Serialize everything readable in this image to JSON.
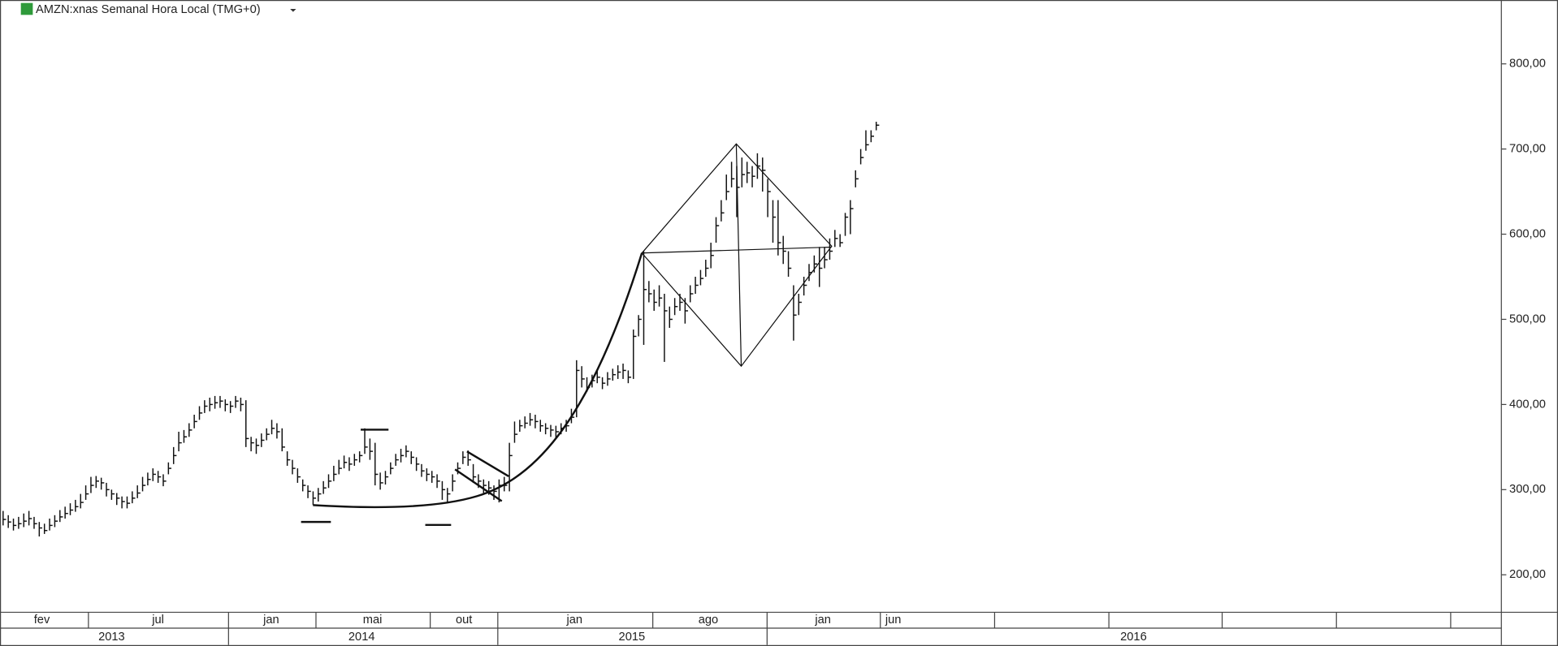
{
  "chart_data": {
    "type": "ohlc",
    "title": "AMZN:xnas Semanal Hora Local (TMG+0)",
    "color": "#111111",
    "close": [
      265,
      262,
      258,
      260,
      263,
      266,
      260,
      255,
      252,
      258,
      263,
      268,
      272,
      276,
      280,
      285,
      295,
      305,
      310,
      308,
      300,
      295,
      290,
      286,
      284,
      290,
      296,
      305,
      312,
      318,
      315,
      310,
      325,
      340,
      355,
      362,
      370,
      380,
      390,
      398,
      400,
      402,
      404,
      400,
      398,
      404,
      400,
      360,
      355,
      352,
      358,
      365,
      372,
      368,
      350,
      335,
      325,
      315,
      305,
      298,
      290,
      295,
      302,
      310,
      318,
      325,
      332,
      330,
      335,
      340,
      350,
      345,
      318,
      308,
      315,
      325,
      335,
      340,
      345,
      338,
      330,
      322,
      318,
      315,
      310,
      300,
      295,
      310,
      325,
      338,
      335,
      315,
      310,
      305,
      302,
      298,
      305,
      305,
      340,
      365,
      375,
      378,
      382,
      380,
      375,
      372,
      370,
      368,
      372,
      375,
      385,
      440,
      430,
      420,
      428,
      432,
      425,
      430,
      435,
      438,
      440,
      432,
      480,
      500,
      535,
      530,
      520,
      525,
      510,
      500,
      515,
      520,
      510,
      530,
      540,
      548,
      560,
      575,
      610,
      625,
      650,
      665,
      655,
      670,
      672,
      668,
      680,
      675,
      650,
      620,
      590,
      580,
      560,
      505,
      520,
      540,
      555,
      565,
      560,
      570,
      580,
      595,
      590,
      620,
      630,
      665,
      690,
      705,
      715,
      728
    ],
    "high": [
      275,
      270,
      266,
      268,
      272,
      275,
      268,
      262,
      260,
      266,
      270,
      276,
      280,
      284,
      288,
      295,
      305,
      315,
      316,
      314,
      308,
      300,
      296,
      292,
      292,
      298,
      305,
      315,
      320,
      325,
      322,
      318,
      332,
      350,
      368,
      370,
      378,
      388,
      398,
      405,
      408,
      410,
      410,
      406,
      404,
      410,
      408,
      405,
      362,
      360,
      366,
      372,
      382,
      378,
      372,
      345,
      335,
      325,
      312,
      305,
      298,
      302,
      310,
      318,
      328,
      335,
      340,
      338,
      342,
      345,
      372,
      360,
      355,
      320,
      322,
      332,
      342,
      348,
      352,
      345,
      338,
      330,
      325,
      322,
      318,
      310,
      302,
      318,
      332,
      345,
      346,
      330,
      318,
      312,
      310,
      305,
      312,
      315,
      355,
      380,
      382,
      386,
      390,
      388,
      382,
      378,
      376,
      375,
      378,
      382,
      395,
      452,
      445,
      432,
      435,
      440,
      432,
      438,
      442,
      446,
      448,
      440,
      488,
      505,
      580,
      545,
      535,
      540,
      530,
      515,
      525,
      530,
      525,
      540,
      550,
      558,
      570,
      590,
      620,
      640,
      670,
      685,
      680,
      690,
      685,
      680,
      695,
      690,
      665,
      640,
      640,
      598,
      580,
      540,
      530,
      550,
      565,
      575,
      585,
      585,
      595,
      605,
      600,
      625,
      640,
      675,
      700,
      722,
      722,
      732
    ],
    "low": [
      258,
      255,
      252,
      254,
      256,
      258,
      254,
      245,
      248,
      252,
      256,
      262,
      266,
      270,
      274,
      278,
      288,
      296,
      302,
      300,
      292,
      288,
      282,
      278,
      278,
      284,
      290,
      298,
      305,
      310,
      308,
      304,
      318,
      330,
      345,
      355,
      362,
      372,
      382,
      390,
      392,
      395,
      396,
      392,
      390,
      396,
      392,
      350,
      345,
      342,
      350,
      358,
      365,
      360,
      345,
      328,
      318,
      308,
      298,
      290,
      282,
      286,
      295,
      302,
      310,
      318,
      325,
      322,
      328,
      332,
      342,
      335,
      305,
      300,
      306,
      318,
      328,
      332,
      338,
      330,
      322,
      315,
      310,
      308,
      302,
      288,
      285,
      298,
      318,
      330,
      328,
      308,
      302,
      296,
      294,
      288,
      285,
      298,
      298,
      355,
      368,
      372,
      375,
      372,
      368,
      365,
      362,
      360,
      365,
      368,
      378,
      385,
      420,
      415,
      420,
      425,
      418,
      422,
      428,
      430,
      430,
      425,
      430,
      480,
      470,
      520,
      510,
      515,
      450,
      490,
      505,
      510,
      495,
      520,
      530,
      540,
      550,
      560,
      590,
      615,
      640,
      655,
      620,
      655,
      660,
      655,
      665,
      650,
      620,
      590,
      575,
      565,
      550,
      475,
      505,
      528,
      545,
      555,
      538,
      560,
      570,
      585,
      585,
      598,
      600,
      655,
      682,
      698,
      708,
      722
    ],
    "ylim": [
      156,
      875
    ],
    "yticks": [
      {
        "value": 200,
        "label": "200,00"
      },
      {
        "value": 300,
        "label": "300,00"
      },
      {
        "value": 400,
        "label": "400,00"
      },
      {
        "value": 500,
        "label": "500,00"
      },
      {
        "value": 600,
        "label": "600,00"
      },
      {
        "value": 700,
        "label": "700,00"
      },
      {
        "value": 800,
        "label": "800,00"
      }
    ],
    "xlim": [
      -0.6,
      290
    ],
    "xticks": [
      {
        "value": 7.5,
        "label": "fev"
      },
      {
        "value": 30,
        "label": "jul"
      },
      {
        "value": 51.9,
        "label": "jan"
      },
      {
        "value": 71.5,
        "label": "mai"
      },
      {
        "value": 89.2,
        "label": "out"
      },
      {
        "value": 110.6,
        "label": "jan"
      },
      {
        "value": 136.5,
        "label": "ago"
      },
      {
        "value": 158.7,
        "label": "jan"
      },
      {
        "value": 172.3,
        "label": "jun"
      }
    ],
    "years": [
      {
        "value": 21,
        "label": "2013"
      },
      {
        "value": 69.4,
        "label": "2014"
      },
      {
        "value": 121.7,
        "label": "2015"
      },
      {
        "value": 218.8,
        "label": "2016"
      }
    ]
  }
}
